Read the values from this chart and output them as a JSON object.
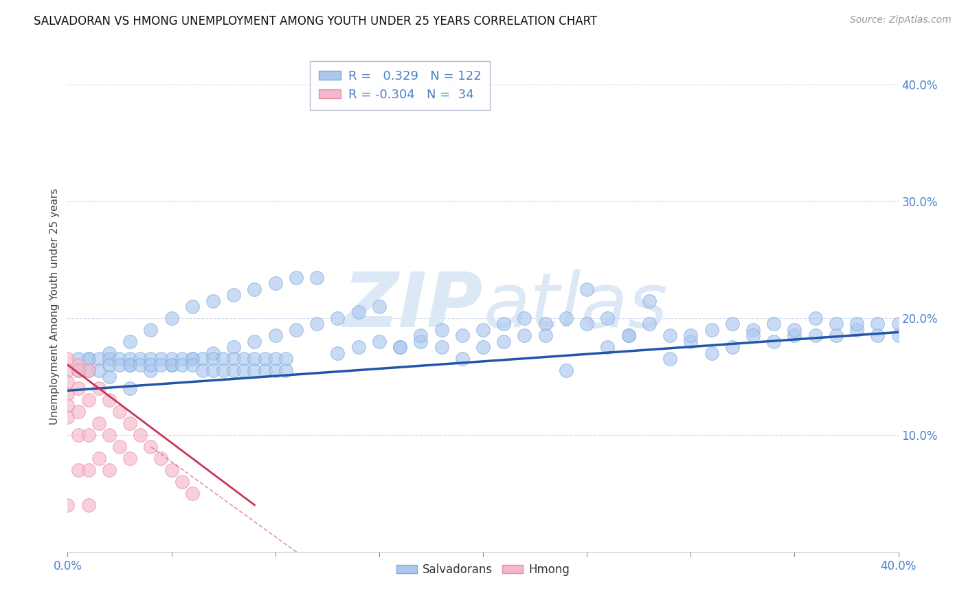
{
  "title": "SALVADORAN VS HMONG UNEMPLOYMENT AMONG YOUTH UNDER 25 YEARS CORRELATION CHART",
  "source": "Source: ZipAtlas.com",
  "ylabel": "Unemployment Among Youth under 25 years",
  "xmin": 0.0,
  "xmax": 0.4,
  "ymin": 0.0,
  "ymax": 0.42,
  "salvadoran_R": 0.329,
  "salvadoran_N": 122,
  "hmong_R": -0.304,
  "hmong_N": 34,
  "blue_fill": "#adc8ef",
  "blue_edge": "#7aaad8",
  "pink_fill": "#f5b8c8",
  "pink_edge": "#e88aaa",
  "blue_line_color": "#2255aa",
  "pink_line_color": "#cc3355",
  "watermark_color": "#dce8f5",
  "background_color": "#ffffff",
  "title_fontsize": 12,
  "tick_color": "#4a7fcb",
  "grid_color": "#c8d4e8",
  "ylabel_color": "#444444",
  "sal_x": [
    0.01,
    0.02,
    0.02,
    0.03,
    0.03,
    0.03,
    0.04,
    0.04,
    0.05,
    0.05,
    0.06,
    0.06,
    0.07,
    0.07,
    0.08,
    0.08,
    0.09,
    0.09,
    0.1,
    0.1,
    0.11,
    0.11,
    0.12,
    0.12,
    0.13,
    0.13,
    0.14,
    0.14,
    0.15,
    0.15,
    0.16,
    0.16,
    0.17,
    0.17,
    0.18,
    0.18,
    0.19,
    0.19,
    0.2,
    0.2,
    0.21,
    0.21,
    0.22,
    0.22,
    0.23,
    0.23,
    0.24,
    0.24,
    0.25,
    0.25,
    0.26,
    0.26,
    0.27,
    0.27,
    0.28,
    0.28,
    0.29,
    0.29,
    0.3,
    0.3,
    0.31,
    0.31,
    0.32,
    0.32,
    0.33,
    0.33,
    0.34,
    0.34,
    0.35,
    0.35,
    0.36,
    0.36,
    0.37,
    0.37,
    0.38,
    0.38,
    0.39,
    0.39,
    0.4,
    0.4,
    0.005,
    0.005,
    0.01,
    0.01,
    0.015,
    0.015,
    0.02,
    0.02,
    0.025,
    0.025,
    0.03,
    0.03,
    0.035,
    0.035,
    0.04,
    0.04,
    0.045,
    0.045,
    0.05,
    0.05,
    0.055,
    0.055,
    0.06,
    0.06,
    0.065,
    0.065,
    0.07,
    0.07,
    0.075,
    0.075,
    0.08,
    0.08,
    0.085,
    0.085,
    0.09,
    0.09,
    0.095,
    0.095,
    0.1,
    0.1,
    0.105,
    0.105
  ],
  "sal_y": [
    0.165,
    0.17,
    0.15,
    0.18,
    0.16,
    0.14,
    0.19,
    0.155,
    0.2,
    0.16,
    0.21,
    0.165,
    0.215,
    0.17,
    0.22,
    0.175,
    0.225,
    0.18,
    0.23,
    0.185,
    0.235,
    0.19,
    0.235,
    0.195,
    0.17,
    0.2,
    0.175,
    0.205,
    0.18,
    0.21,
    0.175,
    0.175,
    0.18,
    0.185,
    0.175,
    0.19,
    0.185,
    0.165,
    0.19,
    0.175,
    0.195,
    0.18,
    0.2,
    0.185,
    0.195,
    0.185,
    0.2,
    0.155,
    0.195,
    0.225,
    0.2,
    0.175,
    0.185,
    0.185,
    0.215,
    0.195,
    0.185,
    0.165,
    0.18,
    0.185,
    0.19,
    0.17,
    0.195,
    0.175,
    0.19,
    0.185,
    0.195,
    0.18,
    0.185,
    0.19,
    0.2,
    0.185,
    0.195,
    0.185,
    0.19,
    0.195,
    0.195,
    0.185,
    0.195,
    0.185,
    0.165,
    0.155,
    0.165,
    0.155,
    0.165,
    0.155,
    0.165,
    0.16,
    0.165,
    0.16,
    0.165,
    0.16,
    0.165,
    0.16,
    0.165,
    0.16,
    0.165,
    0.16,
    0.165,
    0.16,
    0.165,
    0.16,
    0.165,
    0.16,
    0.165,
    0.155,
    0.165,
    0.155,
    0.165,
    0.155,
    0.165,
    0.155,
    0.165,
    0.155,
    0.165,
    0.155,
    0.165,
    0.155,
    0.165,
    0.155,
    0.165,
    0.155
  ],
  "hmo_x": [
    0.0,
    0.0,
    0.0,
    0.0,
    0.0,
    0.0,
    0.0,
    0.005,
    0.005,
    0.005,
    0.005,
    0.005,
    0.01,
    0.01,
    0.01,
    0.01,
    0.015,
    0.015,
    0.015,
    0.02,
    0.02,
    0.02,
    0.025,
    0.025,
    0.03,
    0.03,
    0.035,
    0.04,
    0.045,
    0.05,
    0.055,
    0.06,
    0.005,
    0.01
  ],
  "hmo_y": [
    0.165,
    0.155,
    0.145,
    0.135,
    0.125,
    0.115,
    0.04,
    0.16,
    0.14,
    0.12,
    0.1,
    0.07,
    0.155,
    0.13,
    0.1,
    0.07,
    0.14,
    0.11,
    0.08,
    0.13,
    0.1,
    0.07,
    0.12,
    0.09,
    0.11,
    0.08,
    0.1,
    0.09,
    0.08,
    0.07,
    0.06,
    0.05,
    0.155,
    0.04
  ],
  "sal_line_x": [
    0.0,
    0.4
  ],
  "sal_line_y": [
    0.138,
    0.188
  ],
  "hmo_line_x": [
    0.0,
    0.09
  ],
  "hmo_line_y": [
    0.16,
    0.04
  ]
}
